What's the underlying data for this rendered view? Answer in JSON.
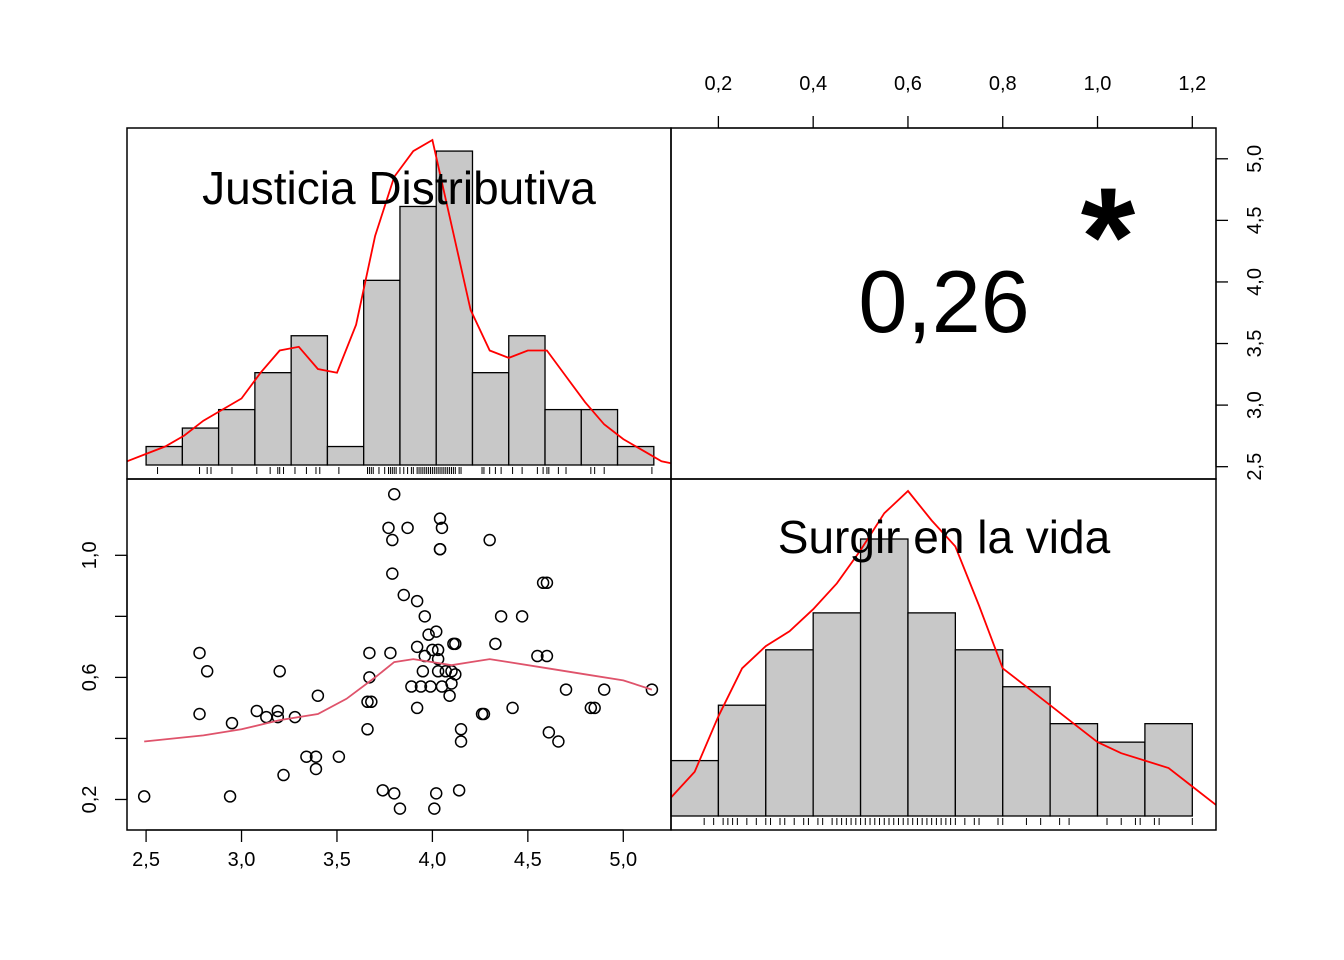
{
  "chart_data": {
    "type": "scatter-matrix",
    "variables": [
      "Justicia Distributiva",
      "Surgir en la vida"
    ],
    "correlation": {
      "label": "0,26",
      "significance": "*",
      "color": "#DF536B"
    },
    "colors": {
      "density": "#FF0000",
      "loess": "#DF536B",
      "bar_fill": "#C8C8C8",
      "frame": "#000000"
    },
    "axes": {
      "x_bottom": {
        "range": [
          2.4,
          5.25
        ],
        "ticks": [
          2.5,
          3.0,
          3.5,
          4.0,
          4.5,
          5.0
        ],
        "tick_labels": [
          "2,5",
          "3,0",
          "3,5",
          "4,0",
          "4,5",
          "5,0"
        ]
      },
      "y_left": {
        "range": [
          0.1,
          1.25
        ],
        "ticks": [
          0.2,
          0.6,
          1.0
        ],
        "tick_labels": [
          "0,2",
          "0,6",
          "1,0"
        ],
        "minor_ticks": [
          0.4,
          0.8
        ]
      },
      "x_top": {
        "range": [
          0.1,
          1.25
        ],
        "ticks": [
          0.2,
          0.4,
          0.6,
          0.8,
          1.0,
          1.2
        ],
        "tick_labels": [
          "0,2",
          "0,4",
          "0,6",
          "0,8",
          "1,0",
          "1,2"
        ]
      },
      "y_right": {
        "range": [
          2.4,
          5.25
        ],
        "ticks": [
          2.5,
          3.0,
          3.5,
          4.0,
          4.5,
          5.0
        ],
        "tick_labels": [
          "2,5",
          "3,0",
          "3,5",
          "4,0",
          "4,5",
          "5,0"
        ]
      }
    },
    "histograms": [
      {
        "name": "Justicia Distributiva",
        "bins": [
          2.5,
          2.69,
          2.88,
          3.07,
          3.26,
          3.45,
          3.64,
          3.83,
          4.02,
          4.21,
          4.4,
          4.59,
          4.78,
          4.97,
          5.16
        ],
        "heights": [
          0.05,
          0.1,
          0.15,
          0.25,
          0.35,
          0.05,
          0.5,
          0.7,
          0.85,
          0.25,
          0.35,
          0.15,
          0.15,
          0.05
        ],
        "density_x": [
          2.4,
          2.5,
          2.6,
          2.7,
          2.8,
          2.9,
          3.0,
          3.1,
          3.2,
          3.3,
          3.4,
          3.5,
          3.6,
          3.7,
          3.8,
          3.9,
          4.0,
          4.1,
          4.2,
          4.3,
          4.4,
          4.5,
          4.6,
          4.7,
          4.8,
          4.9,
          5.0,
          5.1,
          5.2,
          5.25
        ],
        "density_y": [
          0.01,
          0.03,
          0.05,
          0.08,
          0.12,
          0.15,
          0.18,
          0.25,
          0.31,
          0.32,
          0.26,
          0.25,
          0.38,
          0.62,
          0.78,
          0.85,
          0.88,
          0.65,
          0.42,
          0.31,
          0.29,
          0.31,
          0.31,
          0.24,
          0.17,
          0.11,
          0.07,
          0.04,
          0.01,
          0.005
        ],
        "rug": [
          2.56,
          2.78,
          2.82,
          2.84,
          2.95,
          3.08,
          3.15,
          3.19,
          3.2,
          3.22,
          3.28,
          3.34,
          3.39,
          3.41,
          3.51,
          3.66,
          3.67,
          3.68,
          3.69,
          3.72,
          3.75,
          3.77,
          3.78,
          3.79,
          3.8,
          3.81,
          3.83,
          3.85,
          3.87,
          3.89,
          3.9,
          3.92,
          3.93,
          3.94,
          3.95,
          3.96,
          3.97,
          3.98,
          3.99,
          4.0,
          4.01,
          4.02,
          4.03,
          4.04,
          4.05,
          4.06,
          4.07,
          4.08,
          4.09,
          4.1,
          4.11,
          4.12,
          4.14,
          4.15,
          4.26,
          4.27,
          4.3,
          4.33,
          4.36,
          4.42,
          4.47,
          4.55,
          4.58,
          4.6,
          4.61,
          4.66,
          4.7,
          4.83,
          4.85,
          4.9,
          5.15
        ]
      },
      {
        "name": "Surgir en la vida",
        "bins": [
          0.1,
          0.2,
          0.3,
          0.4,
          0.5,
          0.6,
          0.7,
          0.8,
          0.9,
          1.0,
          1.1,
          1.2
        ],
        "heights": [
          0.15,
          0.3,
          0.45,
          0.55,
          0.75,
          0.55,
          0.45,
          0.35,
          0.25,
          0.2,
          0.25,
          0.1
        ],
        "density_x": [
          0.1,
          0.15,
          0.2,
          0.25,
          0.3,
          0.35,
          0.4,
          0.45,
          0.5,
          0.55,
          0.6,
          0.65,
          0.7,
          0.75,
          0.8,
          0.85,
          0.9,
          0.95,
          1.0,
          1.05,
          1.1,
          1.15,
          1.2,
          1.25
        ],
        "density_y": [
          0.05,
          0.12,
          0.27,
          0.4,
          0.46,
          0.5,
          0.56,
          0.63,
          0.72,
          0.82,
          0.88,
          0.8,
          0.73,
          0.57,
          0.4,
          0.35,
          0.3,
          0.25,
          0.2,
          0.17,
          0.15,
          0.13,
          0.08,
          0.03
        ],
        "rug": [
          0.17,
          0.19,
          0.21,
          0.22,
          0.23,
          0.24,
          0.26,
          0.28,
          0.3,
          0.31,
          0.33,
          0.34,
          0.36,
          0.38,
          0.39,
          0.41,
          0.42,
          0.44,
          0.45,
          0.46,
          0.47,
          0.48,
          0.49,
          0.5,
          0.51,
          0.52,
          0.53,
          0.54,
          0.55,
          0.56,
          0.57,
          0.58,
          0.59,
          0.6,
          0.61,
          0.62,
          0.63,
          0.64,
          0.65,
          0.66,
          0.67,
          0.68,
          0.69,
          0.7,
          0.72,
          0.74,
          0.75,
          0.79,
          0.8,
          0.85,
          0.88,
          0.92,
          0.94,
          1.02,
          1.05,
          1.08,
          1.09,
          1.12,
          1.13,
          1.2
        ]
      }
    ],
    "scatter": {
      "points": [
        {
          "x": 2.49,
          "y": 0.21
        },
        {
          "x": 2.78,
          "y": 0.68
        },
        {
          "x": 2.78,
          "y": 0.48
        },
        {
          "x": 2.82,
          "y": 0.62
        },
        {
          "x": 2.94,
          "y": 0.21
        },
        {
          "x": 2.95,
          "y": 0.45
        },
        {
          "x": 3.08,
          "y": 0.49
        },
        {
          "x": 3.13,
          "y": 0.47
        },
        {
          "x": 3.19,
          "y": 0.49
        },
        {
          "x": 3.19,
          "y": 0.47
        },
        {
          "x": 3.2,
          "y": 0.62
        },
        {
          "x": 3.22,
          "y": 0.28
        },
        {
          "x": 3.28,
          "y": 0.47
        },
        {
          "x": 3.34,
          "y": 0.34
        },
        {
          "x": 3.39,
          "y": 0.34
        },
        {
          "x": 3.39,
          "y": 0.3
        },
        {
          "x": 3.4,
          "y": 0.54
        },
        {
          "x": 3.51,
          "y": 0.34
        },
        {
          "x": 3.66,
          "y": 0.52
        },
        {
          "x": 3.66,
          "y": 0.43
        },
        {
          "x": 3.67,
          "y": 0.68
        },
        {
          "x": 3.67,
          "y": 0.6
        },
        {
          "x": 3.68,
          "y": 0.52
        },
        {
          "x": 3.74,
          "y": 0.23
        },
        {
          "x": 3.77,
          "y": 1.09
        },
        {
          "x": 3.78,
          "y": 0.68
        },
        {
          "x": 3.79,
          "y": 1.05
        },
        {
          "x": 3.79,
          "y": 0.94
        },
        {
          "x": 3.8,
          "y": 1.2
        },
        {
          "x": 3.8,
          "y": 0.22
        },
        {
          "x": 3.83,
          "y": 0.17
        },
        {
          "x": 3.85,
          "y": 0.87
        },
        {
          "x": 3.87,
          "y": 1.09
        },
        {
          "x": 3.89,
          "y": 0.57
        },
        {
          "x": 3.92,
          "y": 0.85
        },
        {
          "x": 3.92,
          "y": 0.5
        },
        {
          "x": 3.92,
          "y": 0.7
        },
        {
          "x": 3.94,
          "y": 0.57
        },
        {
          "x": 3.95,
          "y": 0.62
        },
        {
          "x": 3.96,
          "y": 0.8
        },
        {
          "x": 3.96,
          "y": 0.67
        },
        {
          "x": 3.98,
          "y": 0.74
        },
        {
          "x": 3.99,
          "y": 0.57
        },
        {
          "x": 4.0,
          "y": 0.69
        },
        {
          "x": 4.01,
          "y": 0.17
        },
        {
          "x": 4.02,
          "y": 0.22
        },
        {
          "x": 4.02,
          "y": 0.75
        },
        {
          "x": 4.03,
          "y": 0.66
        },
        {
          "x": 4.03,
          "y": 0.62
        },
        {
          "x": 4.03,
          "y": 0.69
        },
        {
          "x": 4.04,
          "y": 1.12
        },
        {
          "x": 4.04,
          "y": 1.02
        },
        {
          "x": 4.04,
          "y": 1.02
        },
        {
          "x": 4.05,
          "y": 1.09
        },
        {
          "x": 4.05,
          "y": 0.57
        },
        {
          "x": 4.07,
          "y": 0.62
        },
        {
          "x": 4.09,
          "y": 0.54
        },
        {
          "x": 4.1,
          "y": 0.58
        },
        {
          "x": 4.1,
          "y": 0.62
        },
        {
          "x": 4.11,
          "y": 0.71
        },
        {
          "x": 4.12,
          "y": 0.71
        },
        {
          "x": 4.12,
          "y": 0.61
        },
        {
          "x": 4.14,
          "y": 0.23
        },
        {
          "x": 4.15,
          "y": 0.43
        },
        {
          "x": 4.15,
          "y": 0.39
        },
        {
          "x": 4.26,
          "y": 0.48
        },
        {
          "x": 4.27,
          "y": 0.48
        },
        {
          "x": 4.3,
          "y": 1.05
        },
        {
          "x": 4.33,
          "y": 0.71
        },
        {
          "x": 4.36,
          "y": 0.8
        },
        {
          "x": 4.42,
          "y": 0.5
        },
        {
          "x": 4.47,
          "y": 0.8
        },
        {
          "x": 4.55,
          "y": 0.67
        },
        {
          "x": 4.58,
          "y": 0.91
        },
        {
          "x": 4.6,
          "y": 0.91
        },
        {
          "x": 4.6,
          "y": 0.67
        },
        {
          "x": 4.61,
          "y": 0.42
        },
        {
          "x": 4.66,
          "y": 0.39
        },
        {
          "x": 4.7,
          "y": 0.56
        },
        {
          "x": 4.83,
          "y": 0.5
        },
        {
          "x": 4.85,
          "y": 0.5
        },
        {
          "x": 4.9,
          "y": 0.56
        },
        {
          "x": 5.15,
          "y": 0.56
        }
      ],
      "loess": [
        {
          "x": 2.49,
          "y": 0.39
        },
        {
          "x": 2.8,
          "y": 0.41
        },
        {
          "x": 3.0,
          "y": 0.43
        },
        {
          "x": 3.2,
          "y": 0.46
        },
        {
          "x": 3.4,
          "y": 0.48
        },
        {
          "x": 3.55,
          "y": 0.53
        },
        {
          "x": 3.7,
          "y": 0.6
        },
        {
          "x": 3.8,
          "y": 0.65
        },
        {
          "x": 3.9,
          "y": 0.66
        },
        {
          "x": 4.0,
          "y": 0.65
        },
        {
          "x": 4.1,
          "y": 0.64
        },
        {
          "x": 4.2,
          "y": 0.65
        },
        {
          "x": 4.3,
          "y": 0.66
        },
        {
          "x": 4.4,
          "y": 0.65
        },
        {
          "x": 4.6,
          "y": 0.63
        },
        {
          "x": 4.8,
          "y": 0.61
        },
        {
          "x": 5.0,
          "y": 0.59
        },
        {
          "x": 5.15,
          "y": 0.56
        }
      ]
    }
  }
}
